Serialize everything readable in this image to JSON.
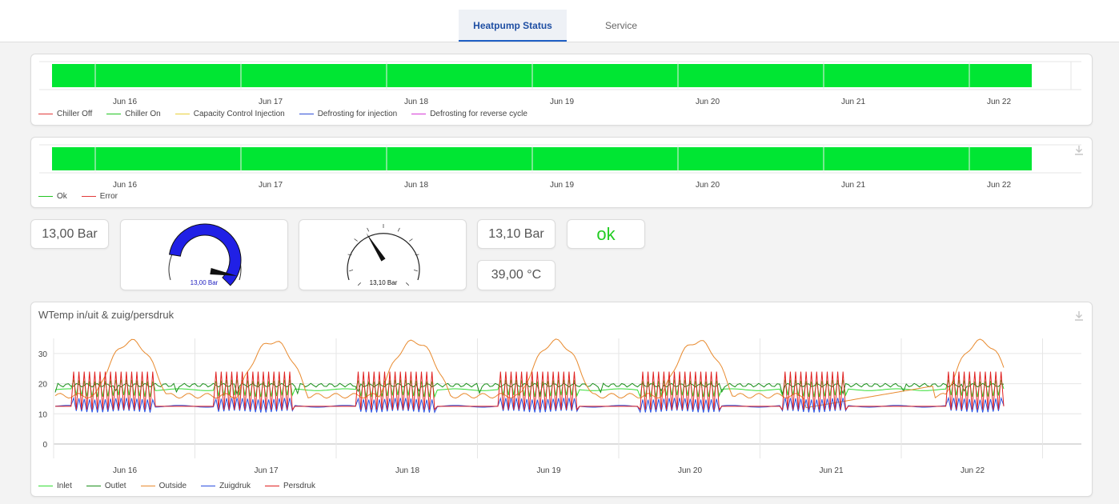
{
  "tabs": [
    {
      "label": "Heatpump Status",
      "active": true
    },
    {
      "label": "Service",
      "active": false
    }
  ],
  "status_chart_1": {
    "x_ticks": [
      "Jun 16",
      "Jun 17",
      "Jun 18",
      "Jun 19",
      "Jun 20",
      "Jun 21",
      "Jun 22"
    ],
    "bar_color": "#00e633",
    "legend": [
      {
        "label": "Chiller Off",
        "color": "#e23b3b"
      },
      {
        "label": "Chiller On",
        "color": "#22c422"
      },
      {
        "label": "Capacity Control Injection",
        "color": "#e8d13a"
      },
      {
        "label": "Defrosting for injection",
        "color": "#2f4fd6"
      },
      {
        "label": "Defrosting for reverse cycle",
        "color": "#d63bd6"
      }
    ]
  },
  "status_chart_2": {
    "x_ticks": [
      "Jun 16",
      "Jun 17",
      "Jun 18",
      "Jun 19",
      "Jun 20",
      "Jun 21",
      "Jun 22"
    ],
    "bar_color": "#00e633",
    "legend": [
      {
        "label": "Ok",
        "color": "#22c422"
      },
      {
        "label": "Error",
        "color": "#e23b3b"
      }
    ]
  },
  "widgets": {
    "pressure_1": "13,00 Bar",
    "gauge_1": {
      "label": "13,00 Bar",
      "color": "#1f1fe0",
      "fill_fraction": 0.68
    },
    "gauge_2": {
      "label": "13,10 Bar",
      "needle_fraction": 0.38
    },
    "pressure_2": "13,10 Bar",
    "status": "ok",
    "temperature": "39,00 °C"
  },
  "chart_data": {
    "type": "line",
    "title": "WTemp in/uit & zuig/persdruk",
    "x_ticks": [
      "Jun 16",
      "Jun 17",
      "Jun 18",
      "Jun 19",
      "Jun 20",
      "Jun 21",
      "Jun 22"
    ],
    "y_ticks": [
      "0",
      "10",
      "20",
      "30"
    ],
    "ylim": [
      0,
      35
    ],
    "grid": true,
    "legend_position": "bottom-left",
    "series": [
      {
        "name": "Inlet",
        "color": "#33dd33",
        "base": 18,
        "amp": 3,
        "mode": "pulse"
      },
      {
        "name": "Outlet",
        "color": "#1a8f1a",
        "base": 19.5,
        "amp": 1.2,
        "mode": "steady"
      },
      {
        "name": "Outside",
        "color": "#e88a2e",
        "base": 20,
        "amp": 10,
        "mode": "daily"
      },
      {
        "name": "Zuigdruk",
        "color": "#2a4fe0",
        "base": 12.5,
        "amp": 2.5,
        "mode": "pulse"
      },
      {
        "name": "Persdruk",
        "color": "#e02020",
        "base": 15,
        "amp": 9,
        "mode": "spike"
      }
    ]
  }
}
